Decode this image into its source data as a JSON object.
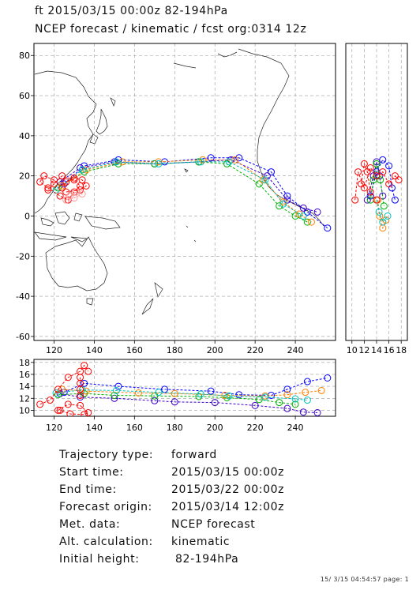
{
  "header": {
    "line1": "ft 2015/03/15 00:00z  82-194hPa",
    "line2": "NCEP forecast / kinematic / fcst org:0314 12z"
  },
  "chart_data": [
    {
      "type": "line",
      "name": "main-map",
      "xlim": [
        110,
        260
      ],
      "ylim": [
        -62,
        86
      ],
      "xticks": [
        120,
        140,
        160,
        180,
        200,
        220,
        240
      ],
      "yticks": [
        -60,
        -40,
        -20,
        0,
        20,
        40,
        60,
        80
      ],
      "grid": true,
      "series": [
        {
          "color": "#0000ff",
          "x": [
            125,
            135,
            152,
            175,
            198,
            212,
            228,
            236,
            246,
            256
          ],
          "y": [
            16,
            25,
            28,
            27,
            29,
            29,
            22,
            10,
            2,
            -6
          ]
        },
        {
          "color": "#3a00c8",
          "x": [
            123,
            133,
            150,
            170,
            192,
            208,
            226,
            236,
            244,
            251
          ],
          "y": [
            17,
            24,
            27,
            26,
            27,
            28,
            20,
            8,
            4,
            2
          ]
        },
        {
          "color": "#00b000",
          "x": [
            122,
            135,
            152,
            170,
            192,
            206,
            222,
            232,
            240,
            246
          ],
          "y": [
            14,
            22,
            26,
            26,
            27,
            26,
            16,
            5,
            0,
            -3
          ]
        },
        {
          "color": "#ff8000",
          "x": [
            124,
            136,
            154,
            172,
            194,
            210,
            224,
            234,
            242,
            248
          ],
          "y": [
            15,
            23,
            27,
            27,
            28,
            28,
            18,
            7,
            1,
            -3
          ]
        },
        {
          "color": "#00c0c0",
          "x": [
            121,
            134,
            151,
            172,
            193,
            207,
            225,
            234,
            244
          ],
          "y": [
            13,
            23,
            27,
            26,
            27,
            27,
            18,
            6,
            0
          ]
        },
        {
          "color": "#ff0000",
          "x": [
            120,
            115,
            113,
            117,
            123,
            127,
            130,
            133,
            130,
            124,
            120,
            117
          ],
          "y": [
            18,
            20,
            17,
            14,
            10,
            8,
            12,
            15,
            18,
            20,
            16,
            13
          ]
        },
        {
          "color": "#ff0000",
          "x": [
            126,
            133,
            136,
            134,
            130,
            126,
            124
          ],
          "y": [
            12,
            13,
            15,
            18,
            19,
            17,
            14
          ]
        },
        {
          "color": "#ff9999",
          "x": [
            126,
            130,
            134,
            131,
            128
          ],
          "y": [
            8,
            9,
            11,
            12,
            10
          ]
        }
      ]
    },
    {
      "type": "line",
      "name": "latitude-height-panel",
      "xlim": [
        9,
        19
      ],
      "ylim": [
        -62,
        86
      ],
      "xticks": [
        10,
        12,
        14,
        16,
        18
      ],
      "xticklabels": [
        "10",
        "12",
        "14",
        "16",
        "18"
      ],
      "grid": true,
      "series": [
        {
          "color": "#0000ff",
          "x": [
            13,
            14,
            15,
            16,
            16.5,
            17
          ],
          "y": [
            10,
            22,
            28,
            25,
            14,
            8
          ]
        },
        {
          "color": "#3a00c8",
          "x": [
            12.5,
            13.5,
            14,
            14.5,
            15
          ],
          "y": [
            8,
            20,
            27,
            20,
            10
          ]
        },
        {
          "color": "#00b000",
          "x": [
            13,
            13.5,
            14,
            14.6,
            15.2
          ],
          "y": [
            8,
            18,
            26,
            18,
            5
          ]
        },
        {
          "color": "#ff8000",
          "x": [
            14.2,
            14.5,
            15,
            15.5
          ],
          "y": [
            8,
            0,
            -6,
            -2
          ]
        },
        {
          "color": "#00c0c0",
          "x": [
            14,
            14.4,
            15,
            15.8
          ],
          "y": [
            8,
            2,
            -3,
            0
          ]
        },
        {
          "color": "#ff0000",
          "x": [
            10.5,
            11,
            12,
            13,
            14,
            15,
            16,
            17,
            17.6
          ],
          "y": [
            8,
            22,
            14,
            24,
            20,
            22,
            16,
            20,
            18
          ]
        },
        {
          "color": "#ff0000",
          "x": [
            11.5,
            12,
            12.5,
            13,
            14
          ],
          "y": [
            16,
            26,
            22,
            12,
            8
          ]
        }
      ]
    },
    {
      "type": "line",
      "name": "height-time-panel",
      "xlim": [
        110,
        260
      ],
      "ylim": [
        9,
        18.5
      ],
      "xticks": [
        120,
        140,
        160,
        180,
        200,
        220,
        240
      ],
      "yticks": [
        10,
        12,
        14,
        16,
        18
      ],
      "grid": true,
      "series": [
        {
          "color": "#0000ff",
          "x": [
            125,
            135,
            152,
            175,
            198,
            212,
            228,
            236,
            246,
            256
          ],
          "y": [
            13,
            14.5,
            14,
            13.5,
            13.2,
            12.6,
            12.5,
            13.5,
            14.8,
            15.4
          ]
        },
        {
          "color": "#3a00c8",
          "x": [
            123,
            133,
            150,
            170,
            180,
            200,
            220,
            236,
            244,
            251
          ],
          "y": [
            12.8,
            12.2,
            12,
            11.6,
            11.4,
            11.3,
            10.8,
            10.3,
            9.7,
            9.6
          ]
        },
        {
          "color": "#00b000",
          "x": [
            122,
            135,
            150,
            170,
            192,
            206,
            222,
            232,
            240
          ],
          "y": [
            12.6,
            12.8,
            12.5,
            12.4,
            12.3,
            12.1,
            11.8,
            11.3,
            11.0
          ]
        },
        {
          "color": "#ff8000",
          "x": [
            124,
            136,
            162,
            180,
            205,
            225,
            236,
            245,
            253
          ],
          "y": [
            13.5,
            13.2,
            12.9,
            12.8,
            12.5,
            12.4,
            12.6,
            13,
            13.3
          ]
        },
        {
          "color": "#00c0c0",
          "x": [
            121,
            134,
            151,
            172,
            193,
            207,
            225,
            240,
            246
          ],
          "y": [
            12.9,
            13.4,
            13.3,
            13.0,
            12.7,
            12.4,
            12.2,
            11.9,
            11.7
          ]
        },
        {
          "color": "#ff0000",
          "x": [
            113,
            118,
            122,
            127,
            133,
            135,
            137
          ],
          "y": [
            11,
            11.7,
            13.5,
            15.5,
            16.5,
            17.5,
            16.5
          ]
        },
        {
          "color": "#ff0000",
          "x": [
            122,
            127,
            133,
            137,
            135,
            128,
            123
          ],
          "y": [
            10,
            11,
            10.8,
            9.6,
            9.3,
            9.4,
            10
          ]
        },
        {
          "color": "#ff0000",
          "x": [
            133,
            133,
            133,
            133
          ],
          "y": [
            12.5,
            13.5,
            14.5,
            15.5
          ]
        }
      ]
    }
  ],
  "info": {
    "rows": [
      {
        "label": "Trajectory type:",
        "value": "forward"
      },
      {
        "label": "Start time:",
        "value": "2015/03/15 00:00z"
      },
      {
        "label": "End time:",
        "value": "2015/03/22 00:00z"
      },
      {
        "label": "Forecast origin:",
        "value": "2015/03/14 12:00z"
      },
      {
        "label": "Met. data:",
        "value": "NCEP forecast"
      },
      {
        "label": "Alt. calculation:",
        "value": "kinematic"
      },
      {
        "label": "Initial height:",
        "value": " 82-194hPa"
      }
    ]
  },
  "footer": "15/ 3/15 04:54:57 page: 1"
}
